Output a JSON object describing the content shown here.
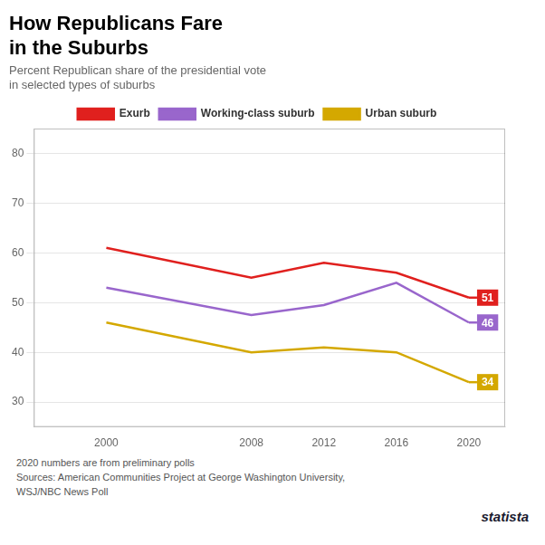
{
  "chart_data": {
    "type": "line",
    "title": [
      "How Republicans Fare",
      "in the Suburbs"
    ],
    "subtitle": [
      "Percent Republican share of the presidential vote",
      "in selected types of suburbs"
    ],
    "x": [
      2000,
      2008,
      2012,
      2016,
      2020
    ],
    "series": [
      {
        "name": "Exurb",
        "color": "#e0201e",
        "values": [
          61,
          55,
          58,
          56,
          51
        ],
        "value_labels": [
          null,
          null,
          null,
          null,
          "51"
        ]
      },
      {
        "name": "Working-class suburb",
        "color": "#9966cc",
        "values": [
          53,
          47.5,
          49.5,
          54,
          46
        ],
        "value_labels": [
          null,
          null,
          null,
          null,
          "46"
        ]
      },
      {
        "name": "Urban suburb",
        "color": "#d4a800",
        "values": [
          46,
          40,
          41,
          40,
          34
        ],
        "value_labels": [
          null,
          null,
          null,
          null,
          "34"
        ]
      }
    ],
    "xlim": [
      1996,
      2022
    ],
    "xticks": [
      2000,
      2008,
      2012,
      2016,
      2020
    ],
    "ylim": [
      25,
      85
    ],
    "yticks": [
      30,
      40,
      50,
      60,
      70,
      80
    ],
    "grid": true,
    "legend": "top",
    "footnotes": [
      "2020 numbers are from preliminary polls",
      "Sources: American Communities Project at George Washington University,",
      "WSJ/NBC News Poll"
    ],
    "credit": "statista"
  }
}
